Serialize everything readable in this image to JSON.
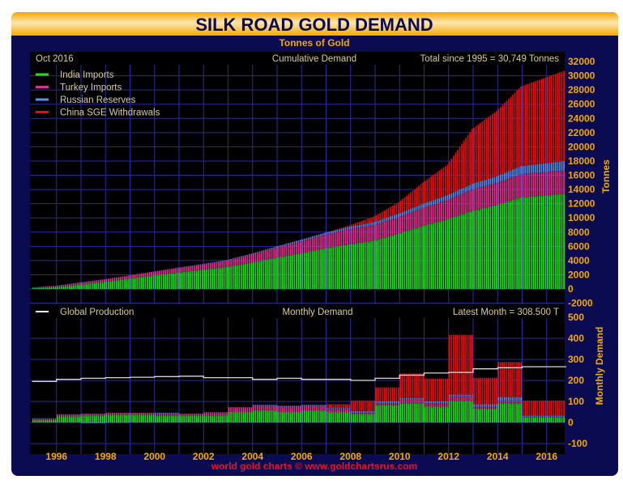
{
  "chart_data": [
    {
      "type": "bar",
      "stacked": true,
      "title": "SILK ROAD GOLD DEMAND",
      "subtitle": "Tonnes of Gold",
      "panel_title": "Cumulative Demand",
      "date_label": "Oct 2016",
      "annotation": "Total since 1995 = 30,749 Tonnes",
      "ylabel": "Tonnes",
      "ylim": [
        -2000,
        32000
      ],
      "yticks": [
        "32000",
        "30000",
        "28000",
        "26000",
        "24000",
        "22000",
        "20000",
        "18000",
        "16000",
        "14000",
        "12000",
        "10000",
        "8000",
        "6000",
        "4000",
        "2000",
        "0",
        "-2000"
      ],
      "grid": true,
      "legend_position": "top-left",
      "x": [
        1995,
        1996,
        1997,
        1998,
        1999,
        2000,
        2001,
        2002,
        2003,
        2004,
        2005,
        2006,
        2007,
        2008,
        2009,
        2010,
        2011,
        2012,
        2013,
        2014,
        2015,
        2016.8
      ],
      "series": [
        {
          "name": "India Imports",
          "color": "#22dd22",
          "values": [
            100,
            250,
            600,
            1000,
            1450,
            1900,
            2300,
            2700,
            3100,
            3700,
            4400,
            5000,
            5700,
            6300,
            6800,
            7800,
            8900,
            9800,
            11000,
            11800,
            12900,
            13400
          ]
        },
        {
          "name": "Turkey Imports",
          "color": "#e0308f",
          "values": [
            80,
            150,
            250,
            350,
            450,
            550,
            650,
            750,
            900,
            1150,
            1400,
            1700,
            1950,
            2150,
            2200,
            2300,
            2500,
            2700,
            3000,
            3100,
            3250,
            3300
          ]
        },
        {
          "name": "Russian Reserves",
          "color": "#5b8ff0",
          "values": [
            20,
            40,
            60,
            20,
            0,
            0,
            50,
            50,
            80,
            100,
            150,
            200,
            250,
            300,
            400,
            500,
            600,
            700,
            800,
            950,
            1150,
            1300
          ]
        },
        {
          "name": "China SGE Withdrawals",
          "color": "#e01010",
          "values": [
            0,
            0,
            0,
            0,
            0,
            0,
            0,
            0,
            0,
            0,
            0,
            0,
            0,
            200,
            800,
            1600,
            3000,
            4300,
            7700,
            9200,
            11200,
            12749
          ]
        }
      ]
    },
    {
      "type": "bar",
      "stacked": true,
      "panel_title": "Monthly Demand",
      "annotation": "Latest Month = 308.500 T",
      "ylabel": "Monthly Demand",
      "ylim": [
        -100,
        500
      ],
      "yticks": [
        "500",
        "400",
        "300",
        "200",
        "100",
        "0",
        "-100"
      ],
      "xticks": [
        "1996",
        "1998",
        "2000",
        "2002",
        "2004",
        "2006",
        "2008",
        "2010",
        "2012",
        "2014",
        "2016"
      ],
      "grid": true,
      "line_series": {
        "name": "Global Production",
        "color": "#ffffff",
        "x": [
          1995,
          1996,
          1997,
          1998,
          1999,
          2000,
          2001,
          2002,
          2003,
          2004,
          2005,
          2006,
          2007,
          2008,
          2009,
          2010,
          2011,
          2012,
          2013,
          2014,
          2015,
          2016
        ],
        "values": [
          195,
          205,
          210,
          213,
          215,
          218,
          220,
          213,
          213,
          205,
          210,
          205,
          205,
          200,
          210,
          225,
          235,
          238,
          255,
          260,
          265,
          265
        ]
      }
    }
  ],
  "footer": "world gold charts © www.goldchartsrus.com",
  "colors": {
    "frame": "#0b0b52",
    "title_bar": "#f7a800",
    "title_text": "#0b0b52",
    "axis_text": "#f2a900",
    "footer_text": "#e8102a",
    "grid": "#2a2aa0"
  }
}
